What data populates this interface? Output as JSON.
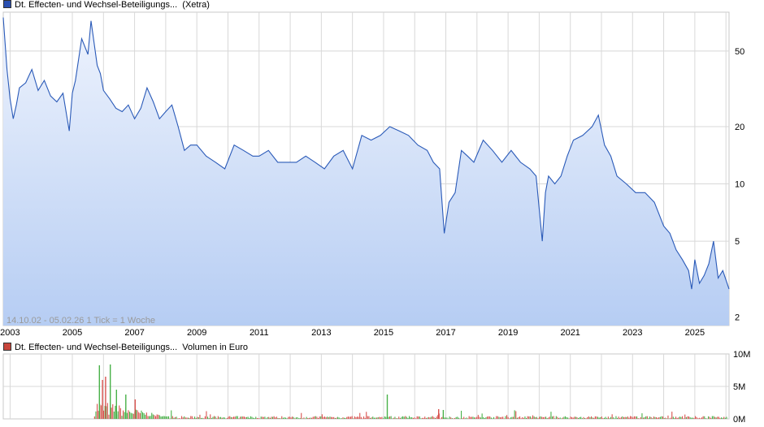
{
  "legend": {
    "price": {
      "text": "Dt. Effecten- und Wechsel-Beteiligungs...",
      "suffix": "(Xetra)",
      "color": "#2a4fb0"
    },
    "volume": {
      "text": "Dt. Effecten- und Wechsel-Beteiligungs...",
      "suffix": "Volumen in Euro",
      "color": "#c8463c"
    }
  },
  "range_text": "14.10.02 - 05.02.26   1 Tick = 1 Woche",
  "colors": {
    "line": "#2a5ab8",
    "fill_top": "#e9f0fc",
    "fill_bottom": "#bcd3f5",
    "vol_red": "#d9534f",
    "vol_green": "#49b149",
    "grid": "#d8d8d8"
  },
  "chart_data": [
    {
      "type": "line",
      "scale": "log",
      "x_tick_labels": [
        "2003",
        "2005",
        "2007",
        "2009",
        "2011",
        "2013",
        "2015",
        "2017",
        "2019",
        "2021",
        "2023",
        "2025"
      ],
      "y_ticks": [
        2,
        5,
        10,
        20,
        50
      ],
      "x_range": [
        2002.78,
        2026.1
      ],
      "y_range": [
        1.8,
        80
      ],
      "series": [
        {
          "x": [
            2002.78,
            2002.9,
            2003.0,
            2003.1,
            2003.2,
            2003.3,
            2003.5,
            2003.7,
            2003.9,
            2004.1,
            2004.3,
            2004.5,
            2004.7,
            2004.9,
            2005.0,
            2005.1,
            2005.3,
            2005.5,
            2005.6,
            2005.8,
            2005.9,
            2006.0,
            2006.2,
            2006.4,
            2006.6,
            2006.8,
            2007.0,
            2007.2,
            2007.4,
            2007.6,
            2007.8,
            2008.0,
            2008.2,
            2008.4,
            2008.6,
            2008.8,
            2009.0,
            2009.3,
            2009.6,
            2009.9,
            2010.2,
            2010.5,
            2010.8,
            2011.0,
            2011.3,
            2011.6,
            2011.9,
            2012.2,
            2012.5,
            2012.8,
            2013.1,
            2013.4,
            2013.7,
            2014.0,
            2014.3,
            2014.6,
            2014.9,
            2015.2,
            2015.5,
            2015.8,
            2016.1,
            2016.4,
            2016.6,
            2016.8,
            2016.95,
            2017.1,
            2017.3,
            2017.5,
            2017.7,
            2017.9,
            2018.2,
            2018.5,
            2018.8,
            2019.1,
            2019.4,
            2019.7,
            2019.9,
            2020.1,
            2020.2,
            2020.3,
            2020.5,
            2020.7,
            2020.9,
            2021.1,
            2021.4,
            2021.7,
            2021.9,
            2022.1,
            2022.3,
            2022.5,
            2022.8,
            2023.1,
            2023.4,
            2023.7,
            2024.0,
            2024.2,
            2024.4,
            2024.6,
            2024.8,
            2024.9,
            2025.0,
            2025.15,
            2025.3,
            2025.45,
            2025.6,
            2025.75,
            2025.9,
            2026.1
          ],
          "values": [
            75,
            40,
            28,
            22,
            26,
            32,
            34,
            40,
            31,
            35,
            29,
            27,
            30,
            19,
            30,
            35,
            58,
            48,
            72,
            42,
            38,
            31,
            28,
            25,
            24,
            26,
            22,
            25,
            32,
            27,
            22,
            24,
            26,
            20,
            15,
            16,
            16,
            14,
            13,
            12,
            16,
            15,
            14,
            14,
            15,
            13,
            13,
            13,
            14,
            13,
            12,
            14,
            15,
            12,
            18,
            17,
            18,
            20,
            19,
            18,
            16,
            15,
            13,
            12,
            5.5,
            8,
            9,
            15,
            14,
            13,
            17,
            15,
            13,
            15,
            13,
            12,
            11,
            5.0,
            9,
            11,
            10,
            11,
            14,
            17,
            18,
            20,
            23,
            16,
            14,
            11,
            10,
            9,
            9,
            8,
            6,
            5.5,
            4.5,
            4.0,
            3.5,
            2.8,
            4,
            3.0,
            3.3,
            3.8,
            5.0,
            3.2,
            3.5,
            2.8
          ]
        }
      ]
    },
    {
      "type": "bar",
      "title": "Volumen in Euro",
      "y_tick_labels": [
        "10M",
        "5M",
        "0M"
      ],
      "y_range": [
        0,
        10000000
      ],
      "x_range": [
        2002.78,
        2026.1
      ]
    }
  ]
}
